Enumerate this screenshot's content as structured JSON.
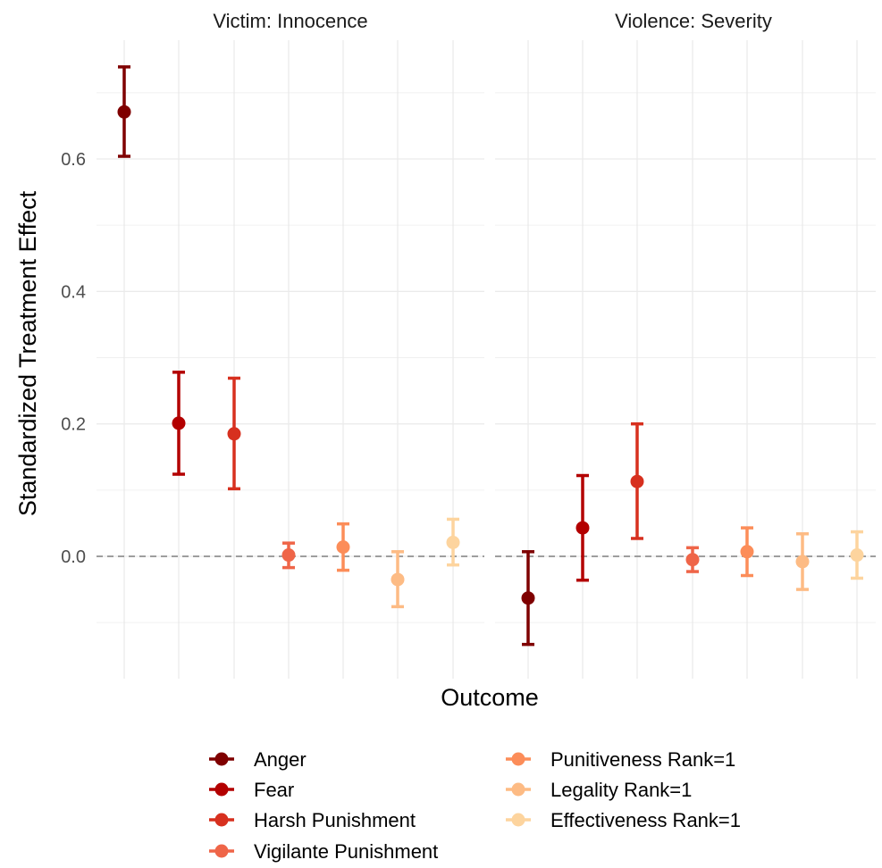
{
  "chart_data": {
    "type": "errorbar",
    "ylabel": "Standardized Treatment Effect",
    "xlabel": "Outcome",
    "ylim": [
      -0.175,
      0.76
    ],
    "yticks": [
      0.0,
      0.2,
      0.4,
      0.6
    ],
    "ytick_labels": [
      "0.0",
      "0.2",
      "0.4",
      "0.6"
    ],
    "reference_line": 0,
    "grid": true,
    "legend_position": "bottom",
    "categories": [
      "Anger",
      "Fear",
      "Harsh Punishment",
      "Vigilante Punishment",
      "Punitiveness Rank=1",
      "Legality Rank=1",
      "Effectiveness Rank=1"
    ],
    "colors": [
      "#7f0000",
      "#b30000",
      "#d7301f",
      "#ef6548",
      "#fc8d59",
      "#fdbb84",
      "#fdd49e"
    ],
    "panels": [
      {
        "title": "Victim: Innocence",
        "estimates": [
          0.671,
          0.201,
          0.185,
          0.002,
          0.014,
          -0.035,
          0.021
        ],
        "lower": [
          0.604,
          0.124,
          0.102,
          -0.017,
          -0.021,
          -0.076,
          -0.013
        ],
        "upper": [
          0.739,
          0.278,
          0.269,
          0.02,
          0.049,
          0.007,
          0.056
        ]
      },
      {
        "title": "Violence: Severity",
        "estimates": [
          -0.063,
          0.043,
          0.113,
          -0.005,
          0.007,
          -0.008,
          0.002
        ],
        "lower": [
          -0.133,
          -0.036,
          0.027,
          -0.023,
          -0.029,
          -0.05,
          -0.033
        ],
        "upper": [
          0.007,
          0.122,
          0.2,
          0.013,
          0.043,
          0.034,
          0.037
        ]
      }
    ]
  }
}
